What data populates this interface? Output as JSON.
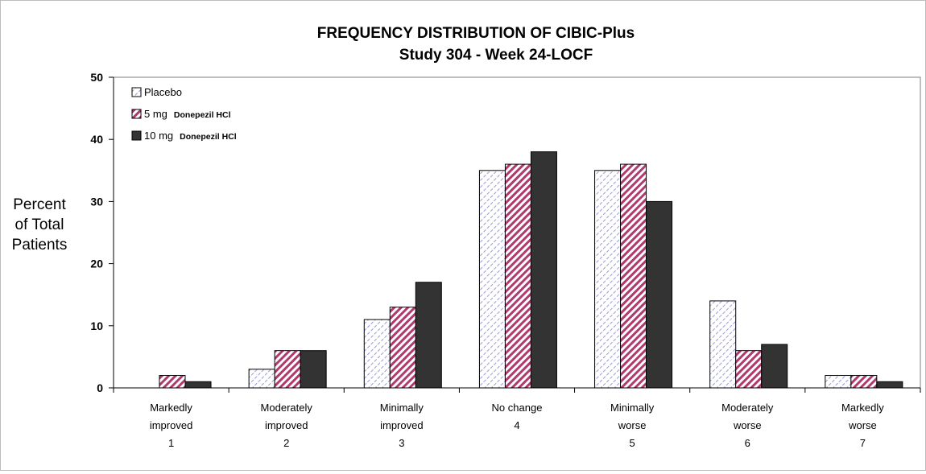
{
  "chart_data": {
    "type": "bar",
    "title_line1": "FREQUENCY DISTRIBUTION OF CIBIC-Plus",
    "title_line2": "Study 304 - Week 24-LOCF",
    "ylabel_lines": [
      "Percent",
      "of Total",
      "Patients"
    ],
    "xlabel": "",
    "ylim": [
      0,
      50
    ],
    "yticks": [
      0,
      10,
      20,
      30,
      40,
      50
    ],
    "grid": false,
    "legend_position": "top-left",
    "categories": [
      [
        "Markedly",
        "improved",
        "1"
      ],
      [
        "Moderately",
        "improved",
        "2"
      ],
      [
        "Minimally",
        "improved",
        "3"
      ],
      [
        "No change",
        "4"
      ],
      [
        "Minimally",
        "worse",
        "5"
      ],
      [
        "Moderately",
        "worse",
        "6"
      ],
      [
        "Markedly",
        "worse",
        "7"
      ]
    ],
    "series": [
      {
        "name": "Placebo",
        "suffix": "",
        "fill": "placebo",
        "values": [
          0,
          3,
          11,
          35,
          35,
          14,
          2
        ]
      },
      {
        "name": "5 mg",
        "suffix": "Donepezil HCl",
        "fill": "fivemg",
        "values": [
          2,
          6,
          13,
          36,
          36,
          6,
          2
        ]
      },
      {
        "name": "10 mg",
        "suffix": "Donepezil HCl",
        "fill": "tenmg",
        "values": [
          1,
          6,
          17,
          38,
          30,
          7,
          1
        ]
      }
    ]
  },
  "colors": {
    "placebo_hatch": "#9a9ad6",
    "fivemg_hatch": "#b03a6e",
    "tenmg_fill": "#333333",
    "axis": "#000000"
  }
}
